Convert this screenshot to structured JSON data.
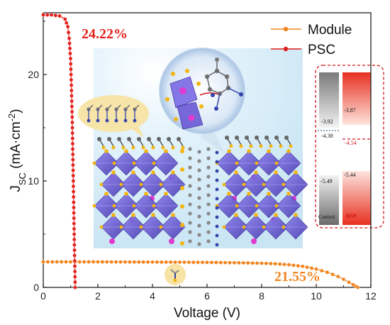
{
  "chart_data": {
    "type": "line",
    "xlabel": "Voltage (V)",
    "ylabel_main": "J",
    "ylabel_sub": "SC",
    "ylabel_rest": " (mA·cm",
    "ylabel_sup": "-2",
    "ylabel_end": ")",
    "xlim": [
      0,
      12
    ],
    "ylim": [
      0,
      25.8
    ],
    "x_ticks": [
      0,
      2,
      4,
      6,
      8,
      10,
      12
    ],
    "y_ticks": [
      0,
      10,
      20
    ],
    "legend_position": "top-right",
    "series": [
      {
        "name": "Module",
        "color": "#f08520",
        "marker": "circle",
        "x": [
          0.0,
          1.0,
          2.0,
          3.0,
          4.0,
          5.0,
          6.0,
          7.0,
          8.0,
          8.5,
          9.0,
          9.5,
          10.0,
          10.4,
          10.8,
          11.0,
          11.2,
          11.35,
          11.45,
          11.52
        ],
        "y": [
          2.4,
          2.4,
          2.4,
          2.39,
          2.38,
          2.37,
          2.35,
          2.32,
          2.27,
          2.22,
          2.13,
          1.98,
          1.72,
          1.42,
          1.02,
          0.76,
          0.48,
          0.26,
          0.1,
          0.0
        ]
      },
      {
        "name": "PSC",
        "color": "#e3201b",
        "marker": "circle",
        "x": [
          0.0,
          0.3,
          0.6,
          0.8,
          0.9,
          0.95,
          1.0,
          1.03,
          1.06,
          1.08,
          1.1,
          1.12,
          1.14,
          1.16,
          1.17
        ],
        "y": [
          25.6,
          25.6,
          25.5,
          25.2,
          24.5,
          23.4,
          21.5,
          19.0,
          16.0,
          13.0,
          10.0,
          7.0,
          4.0,
          1.5,
          0.0
        ]
      }
    ],
    "annotations": {
      "psc_efficiency": "24.22%",
      "module_efficiency": "21.55%"
    }
  },
  "energy_diagram": {
    "control_label": "Control",
    "bsp_label": "BSP",
    "control_top": "-3.92",
    "control_mid": "-4.38",
    "control_bottom": "-5.49",
    "bsp_top": "-3.87",
    "bsp_mid": "-4.54",
    "bsp_bottom": "-5.44"
  },
  "colors": {
    "module": "#f08520",
    "psc": "#e3201b",
    "octahedra": "#6a5acd",
    "background_tint": "#dff1fb"
  }
}
